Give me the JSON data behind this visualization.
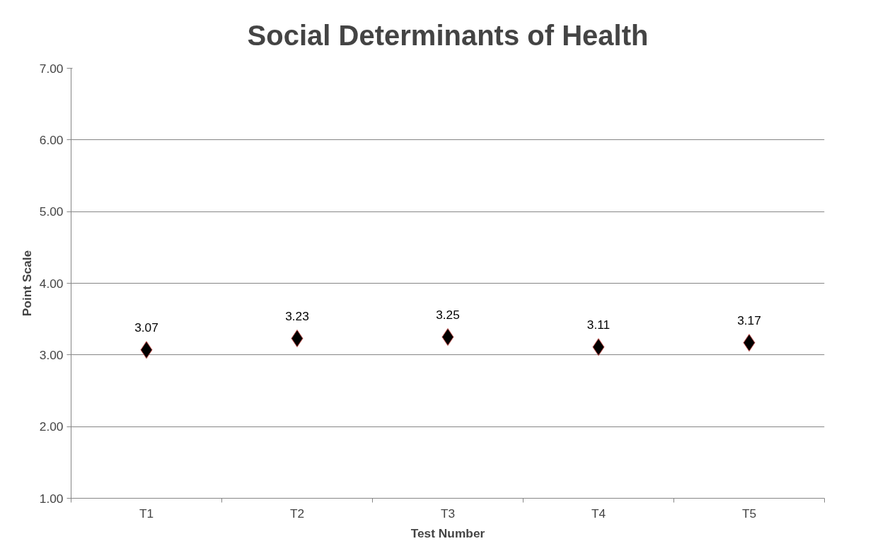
{
  "chart_data": {
    "type": "scatter",
    "title": "Social Determinants of Health",
    "xlabel": "Test Number",
    "ylabel": "Point Scale",
    "categories": [
      "T1",
      "T2",
      "T3",
      "T4",
      "T5"
    ],
    "series": [
      {
        "color": "#000000",
        "values": [
          3.07,
          3.23,
          3.25,
          3.11,
          3.17
        ]
      }
    ],
    "ylim": [
      1,
      7
    ],
    "yticks": [
      {
        "value": 1,
        "label": "1.00"
      },
      {
        "value": 2,
        "label": "2.00"
      },
      {
        "value": 3,
        "label": "3.00"
      },
      {
        "value": 4,
        "label": "4.00"
      },
      {
        "value": 5,
        "label": "5.00"
      },
      {
        "value": 6,
        "label": "6.00"
      },
      {
        "value": 7,
        "label": "7.00"
      }
    ],
    "grid": "y",
    "marker": "diamond",
    "data_labels": true
  }
}
